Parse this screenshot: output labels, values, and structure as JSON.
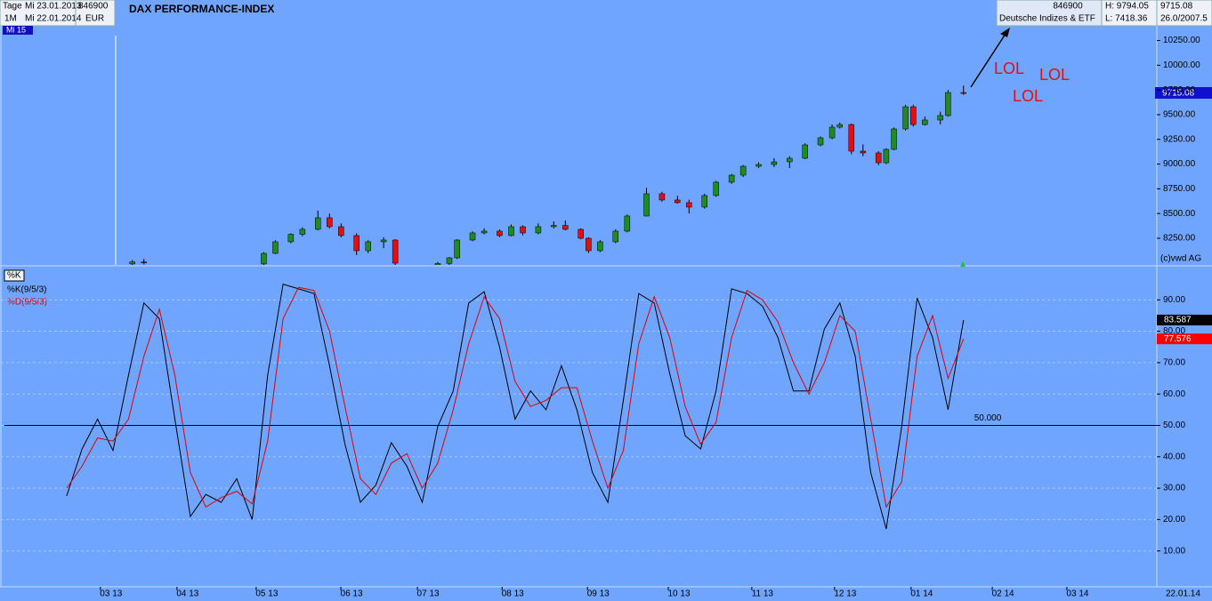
{
  "header": {
    "period_label": "Tage",
    "start_date": "Mi 23.01.2013",
    "interval": "1M",
    "end_date": "Mi 22.01.2014",
    "security_id": "846900",
    "currency": "EUR",
    "cursor_label": "Mi 15",
    "right_id": "846900",
    "exchange": "Deutsche Indizes & ETF",
    "high": "H: 9794.05",
    "low": "L: 7418.36",
    "last": "9715.08",
    "change": "26.0/2007.5",
    "date_label": "22.01.14"
  },
  "chart_data": [
    {
      "type": "candlestick",
      "title": "DAX PERFORMANCE-INDEX",
      "source": "(c)vwd AG",
      "annotations": [
        "LOL",
        "LOL",
        "LOL"
      ],
      "up_color": "#1e8c1e",
      "down_color": "#e01010",
      "xlim": [
        -17,
        282
      ],
      "ylim": [
        7980,
        10390
      ],
      "yticks": [
        {
          "value": 8250,
          "label": "8250.00"
        },
        {
          "value": 8500,
          "label": "8500.00"
        },
        {
          "value": 8750,
          "label": "8750.00"
        },
        {
          "value": 9000,
          "label": "9000.00"
        },
        {
          "value": 9250,
          "label": "9250.00"
        },
        {
          "value": 9500,
          "label": "9500.00"
        },
        {
          "value": 9750,
          "label": "9750.00"
        },
        {
          "value": 10000,
          "label": "10000.00"
        },
        {
          "value": 10250,
          "label": "10250.00"
        }
      ],
      "x": [
        17,
        20,
        51,
        54,
        58,
        61,
        65,
        68,
        71,
        75,
        78,
        82,
        85,
        96,
        99,
        101,
        105,
        108,
        112,
        115,
        118,
        122,
        126,
        129,
        133,
        135,
        138,
        142,
        145,
        150,
        154,
        158,
        161,
        165,
        168,
        172,
        175,
        179,
        183,
        187,
        191,
        195,
        198,
        200,
        203,
        206,
        210,
        212,
        214,
        217,
        219,
        222,
        226,
        228,
        232
      ],
      "open": [
        7990,
        8010,
        7990,
        8097,
        8214,
        8290,
        8340,
        8457,
        8367,
        8277,
        8124,
        8214,
        8232,
        7980,
        7995,
        8052,
        8232,
        8304,
        8322,
        8277,
        8367,
        8304,
        8367,
        8380,
        8340,
        8250,
        8124,
        8214,
        8322,
        8475,
        8700,
        8637,
        8610,
        8565,
        8682,
        8817,
        8888,
        8978,
        8996,
        9023,
        9059,
        9194,
        9266,
        9374,
        9400,
        9131,
        9113,
        9014,
        9149,
        9356,
        9580,
        9400,
        9446,
        9491,
        9724
      ],
      "high": [
        8030,
        8040,
        8110,
        8230,
        8300,
        8360,
        8530,
        8500,
        8400,
        8300,
        8230,
        8260,
        8240,
        8010,
        8060,
        8240,
        8320,
        8350,
        8340,
        8390,
        8380,
        8400,
        8420,
        8430,
        8350,
        8260,
        8230,
        8340,
        8490,
        8760,
        8720,
        8680,
        8640,
        8700,
        8830,
        8900,
        8990,
        9020,
        9060,
        9080,
        9210,
        9280,
        9400,
        9420,
        9410,
        9200,
        9130,
        9160,
        9370,
        9600,
        9600,
        9480,
        9530,
        9750,
        9794
      ],
      "low": [
        7960,
        7985,
        7980,
        8090,
        8200,
        8270,
        8330,
        8350,
        8260,
        8080,
        8100,
        8150,
        7980,
        7960,
        7980,
        8040,
        8220,
        8290,
        8260,
        8270,
        8280,
        8290,
        8350,
        8330,
        8240,
        8100,
        8110,
        8200,
        8310,
        8470,
        8620,
        8600,
        8500,
        8550,
        8670,
        8800,
        8870,
        8960,
        8970,
        8960,
        9050,
        9180,
        9250,
        9360,
        9100,
        9080,
        8990,
        9000,
        9140,
        9340,
        9380,
        9390,
        9400,
        9480,
        9700
      ],
      "close": [
        8010,
        8000,
        8097,
        8214,
        8290,
        8340,
        8457,
        8367,
        8277,
        8124,
        8214,
        8232,
        7998,
        7995,
        8052,
        8232,
        8304,
        8322,
        8277,
        8367,
        8304,
        8367,
        8380,
        8340,
        8250,
        8124,
        8214,
        8322,
        8475,
        8700,
        8637,
        8610,
        8565,
        8682,
        8817,
        8888,
        8978,
        8996,
        9023,
        9059,
        9194,
        9266,
        9374,
        9400,
        9131,
        9113,
        9014,
        9149,
        9356,
        9580,
        9400,
        9446,
        9491,
        9724,
        9715.08
      ]
    },
    {
      "type": "line",
      "panel_label": "%K",
      "xlim": [
        -17,
        282
      ],
      "ylim": [
        0,
        100
      ],
      "grid": true,
      "yticks": [
        {
          "value": 10,
          "label": "10.00"
        },
        {
          "value": 20,
          "label": "20.00"
        },
        {
          "value": 30,
          "label": "30.00"
        },
        {
          "value": 40,
          "label": "40.00"
        },
        {
          "value": 50,
          "label": "50.00"
        },
        {
          "value": 60,
          "label": "60.00"
        },
        {
          "value": 70,
          "label": "70.00"
        },
        {
          "value": 80,
          "label": "80.00"
        },
        {
          "value": 90,
          "label": "90.00"
        }
      ],
      "xticks": [
        {
          "value": 11.5,
          "label": "03 13"
        },
        {
          "value": 31.3,
          "label": "04 13"
        },
        {
          "value": 51.8,
          "label": "05 13"
        },
        {
          "value": 73.7,
          "label": "06 13"
        },
        {
          "value": 93.5,
          "label": "07 13"
        },
        {
          "value": 115.4,
          "label": "08 13"
        },
        {
          "value": 137.5,
          "label": "09 13"
        },
        {
          "value": 158.4,
          "label": "10 13"
        },
        {
          "value": 180,
          "label": "11 13"
        },
        {
          "value": 201.4,
          "label": "12 13"
        },
        {
          "value": 221.2,
          "label": "01 14"
        },
        {
          "value": 242.2,
          "label": "02 14"
        },
        {
          "value": 261.5,
          "label": "03 14"
        }
      ],
      "hline": {
        "value": 50,
        "label": "50.000"
      },
      "x": [
        0,
        4,
        8,
        12,
        16,
        20,
        24,
        28,
        32,
        36,
        40,
        44,
        48,
        52,
        56,
        60,
        64,
        68,
        72,
        76,
        80,
        84,
        88,
        92,
        96,
        100,
        104,
        108,
        112,
        116,
        120,
        124,
        128,
        132,
        136,
        140,
        144,
        148,
        152,
        156,
        160,
        164,
        168,
        172,
        176,
        180,
        184,
        188,
        192,
        196,
        200,
        204,
        208,
        212,
        216,
        220,
        224,
        228,
        232
      ],
      "series": [
        {
          "name": "%K(9/5/3)",
          "color": "#000000",
          "values": [
            27.5,
            42.5,
            52,
            42,
            66,
            89,
            84,
            52,
            21,
            28,
            25.5,
            33,
            20,
            66,
            95,
            93.5,
            92,
            69,
            44,
            25.5,
            31,
            44.5,
            37,
            25.5,
            49.6,
            61,
            89,
            92.6,
            75,
            52,
            61,
            55,
            69,
            55,
            35,
            25.5,
            58,
            92,
            89,
            66.5,
            46.7,
            42.5,
            61,
            93.5,
            92,
            88,
            78,
            61,
            61,
            80.7,
            89,
            72,
            35,
            17,
            49.6,
            90.6,
            78,
            55,
            83.587
          ]
        },
        {
          "name": "%D(9/5/3)",
          "color": "#e00000",
          "values": [
            30,
            37,
            46,
            45,
            52,
            72,
            87,
            66,
            35,
            24,
            27,
            29,
            25,
            45,
            84,
            94,
            93,
            80,
            56,
            33,
            28,
            38,
            41,
            30,
            38,
            55,
            76,
            91,
            84,
            64,
            56,
            58,
            62,
            62,
            45,
            30,
            42,
            76,
            91,
            78,
            56,
            44,
            51,
            78,
            93,
            90,
            83,
            70,
            60,
            70,
            85,
            80,
            52,
            24,
            32,
            72,
            85,
            65,
            77.576
          ]
        }
      ]
    }
  ]
}
